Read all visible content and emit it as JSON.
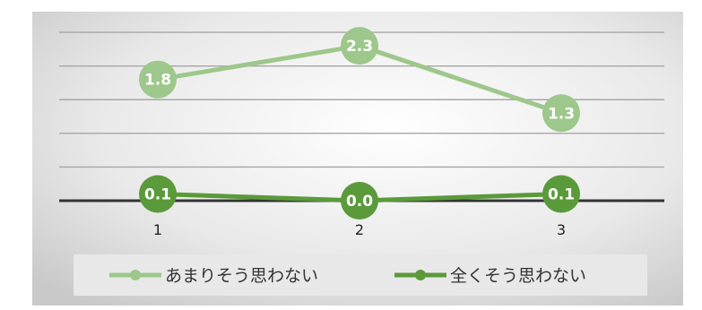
{
  "chart_data": {
    "type": "line",
    "title": "",
    "xlabel": "",
    "ylabel": "",
    "categories": [
      "1",
      "2",
      "3"
    ],
    "ylim": [
      0,
      2.9
    ],
    "grid": true,
    "legend_position": "bottom",
    "series": [
      {
        "name": "あまりそう思わない",
        "values": [
          1.8,
          2.3,
          1.3
        ],
        "labels": [
          "1.8",
          "2.3",
          "1.3"
        ],
        "color": "#9dc78b"
      },
      {
        "name": "全くそう思わない",
        "values": [
          0.1,
          0.0,
          0.1
        ],
        "labels": [
          "0.1",
          "0.0",
          "0.1"
        ],
        "color": "#5a9a3a"
      }
    ]
  }
}
